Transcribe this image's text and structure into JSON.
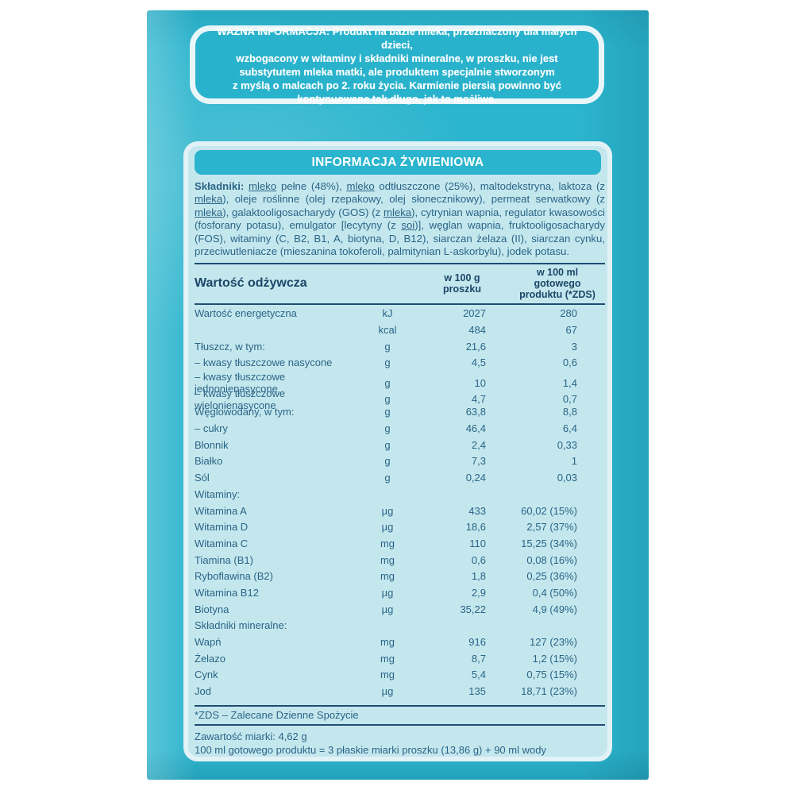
{
  "colors": {
    "package_teal": "#2cb5ce",
    "panel_fill": "#c4e7ee",
    "box_border": "#e9f6f9",
    "navy_text": "#1b4668",
    "body_text": "#2a6486",
    "white_text": "#ffffff"
  },
  "warning": {
    "text": "WAŻNA INFORMACJA: Produkt na bazie mleka, przeznaczony dla małych dzieci,\nwzbogacony w witaminy i składniki mineralne, w proszku, nie jest\nsubstytutem mleka matki, ale produktem specjalnie stworzonym\nz myślą o malcach po 2. roku życia. Karmienie piersią powinno być\nkontynuowane tak długo, jak to możliwe."
  },
  "panel": {
    "title": "INFORMACJA ŻYWIENIOWA",
    "ingredients_segments": [
      {
        "t": "Składniki: ",
        "b": true
      },
      {
        "t": "mleko",
        "u": true
      },
      {
        "t": " pełne (48%), "
      },
      {
        "t": "mleko",
        "u": true
      },
      {
        "t": " odtłuszczone (25%), maltodekstryna, laktoza (z "
      },
      {
        "t": "mleka",
        "u": true
      },
      {
        "t": "), oleje roślinne (olej rzepakowy, olej słonecznikowy), permeat serwatkowy (z "
      },
      {
        "t": "mleka",
        "u": true
      },
      {
        "t": "), galaktooligosacharydy (GOS) (z "
      },
      {
        "t": "mleka",
        "u": true
      },
      {
        "t": "), cytrynian wapnia, regulator kwasowości (fosforany potasu), emulgator [lecytyny (z "
      },
      {
        "t": "soi",
        "u": true
      },
      {
        "t": ")], węglan wapnia, fruktooligosacharydy (FOS), witaminy (C, B2, B1, A, biotyna, D, B12), siarczan żelaza (II), siarczan cynku, przeciwutleniacze (mieszanina tokoferoli, palmitynian L-askorbylu), jodek potasu."
      }
    ],
    "table": {
      "col1_header": "Wartość odżywcza",
      "col2_header": "w 100 g\nproszku",
      "col3_header": "w 100 ml\ngotowego\nproduktu (*ZDS)",
      "rows": [
        {
          "name": "Wartość energetyczna",
          "unit": "kJ",
          "per100g": "2027",
          "per100ml": "280"
        },
        {
          "name": "",
          "unit": "kcal",
          "per100g": "484",
          "per100ml": "67"
        },
        {
          "name": "Tłuszcz, w tym:",
          "unit": "g",
          "per100g": "21,6",
          "per100ml": "3"
        },
        {
          "name": "– kwasy tłuszczowe nasycone",
          "unit": "g",
          "per100g": "4,5",
          "per100ml": "0,6"
        },
        {
          "name": "– kwasy tłuszczowe jednonienasycone",
          "unit": "g",
          "per100g": "10",
          "per100ml": "1,4"
        },
        {
          "name": "– kwasy tłuszczowe wielonienasycone",
          "unit": "g",
          "per100g": "4,7",
          "per100ml": "0,7"
        },
        {
          "name": "Węglowodany, w tym:",
          "unit": "g",
          "per100g": "63,8",
          "per100ml": "8,8"
        },
        {
          "name": "– cukry",
          "unit": "g",
          "per100g": "46,4",
          "per100ml": "6,4"
        },
        {
          "name": "Błonnik",
          "unit": "g",
          "per100g": "2,4",
          "per100ml": "0,33"
        },
        {
          "name": "Białko",
          "unit": "g",
          "per100g": "7,3",
          "per100ml": "1"
        },
        {
          "name": "Sól",
          "unit": "g",
          "per100g": "0,24",
          "per100ml": "0,03"
        },
        {
          "name": "Witaminy:",
          "unit": "",
          "per100g": "",
          "per100ml": ""
        },
        {
          "name": "Witamina A",
          "unit": "µg",
          "per100g": "433",
          "per100ml": "60,02 (15%)"
        },
        {
          "name": "Witamina D",
          "unit": "µg",
          "per100g": "18,6",
          "per100ml": "2,57 (37%)"
        },
        {
          "name": "Witamina C",
          "unit": "mg",
          "per100g": "110",
          "per100ml": "15,25 (34%)"
        },
        {
          "name": "Tiamina (B1)",
          "unit": "mg",
          "per100g": "0,6",
          "per100ml": "0,08 (16%)"
        },
        {
          "name": "Ryboflawina (B2)",
          "unit": "mg",
          "per100g": "1,8",
          "per100ml": "0,25 (36%)"
        },
        {
          "name": "Witamina B12",
          "unit": "µg",
          "per100g": "2,9",
          "per100ml": "0,4 (50%)"
        },
        {
          "name": "Biotyna",
          "unit": "µg",
          "per100g": "35,22",
          "per100ml": "4,9 (49%)"
        },
        {
          "name": "Składniki mineralne:",
          "unit": "",
          "per100g": "",
          "per100ml": ""
        },
        {
          "name": "Wapń",
          "unit": "mg",
          "per100g": "916",
          "per100ml": "127 (23%)"
        },
        {
          "name": "Żelazo",
          "unit": "mg",
          "per100g": "8,7",
          "per100ml": "1,2 (15%)"
        },
        {
          "name": "Cynk",
          "unit": "mg",
          "per100g": "5,4",
          "per100ml": "0,75 (15%)"
        },
        {
          "name": "Jod",
          "unit": "µg",
          "per100g": "135",
          "per100ml": "18,71 (23%)"
        }
      ]
    },
    "footnote": "*ZDS – Zalecane Dzienne Spożycie",
    "footer_line1": "Zawartość miarki: 4,62 g",
    "footer_line2": "100 ml gotowego produktu = 3 płaskie miarki proszku (13,86 g) + 90 ml wody"
  }
}
